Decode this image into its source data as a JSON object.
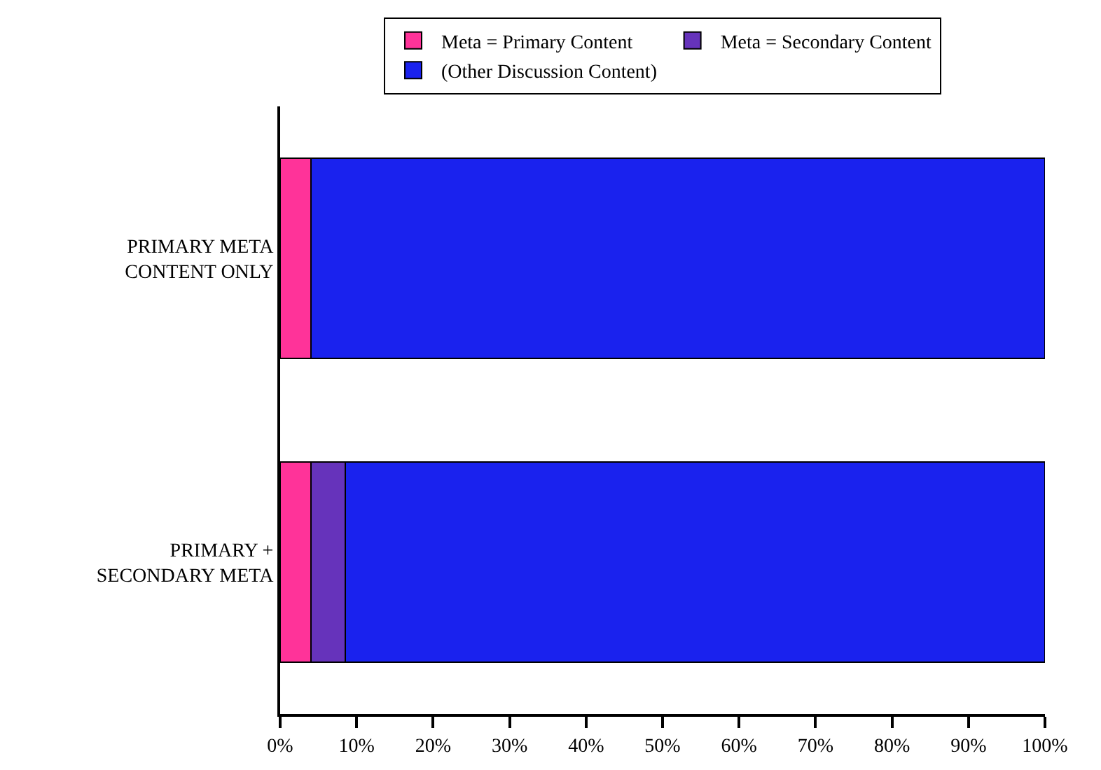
{
  "chart_data": {
    "type": "bar",
    "orientation": "horizontal",
    "stacked": true,
    "categories": [
      "PRIMARY META\nCONTENT ONLY",
      "PRIMARY +\nSECONDARY META"
    ],
    "series": [
      {
        "name": "Meta = Primary Content",
        "color": "#ff3399",
        "values": [
          4,
          4
        ]
      },
      {
        "name": "Meta = Secondary Content",
        "color": "#6633bb",
        "values": [
          null,
          4.5
        ]
      },
      {
        "name": "(Other Discussion Content)",
        "color": "#1a22ee",
        "values": [
          96,
          91.5
        ]
      }
    ],
    "xlim": [
      0,
      100
    ],
    "xticks": [
      {
        "value": 0,
        "label": "0%"
      },
      {
        "value": 10,
        "label": "10%"
      },
      {
        "value": 20,
        "label": "20%"
      },
      {
        "value": 30,
        "label": "30%"
      },
      {
        "value": 40,
        "label": "40%"
      },
      {
        "value": 50,
        "label": "50%"
      },
      {
        "value": 60,
        "label": "60%"
      },
      {
        "value": 70,
        "label": "70%"
      },
      {
        "value": 80,
        "label": "80%"
      },
      {
        "value": 90,
        "label": "90%"
      },
      {
        "value": 100,
        "label": "100%"
      }
    ],
    "grid": false,
    "legend": "top"
  }
}
